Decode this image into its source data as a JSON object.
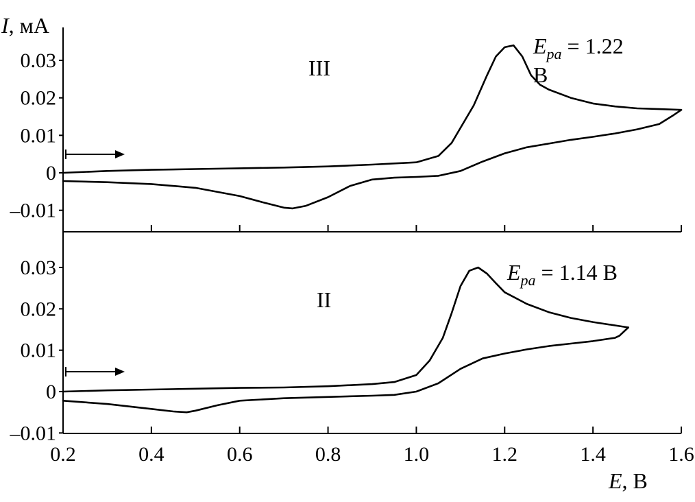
{
  "chart_data": {
    "type": "line",
    "ylabel_italic": "I",
    "ylabel_rest": ", мА",
    "xlabel_italic": "E",
    "xlabel_rest": ", В",
    "xlim": [
      0.2,
      1.6
    ],
    "xticks": [
      "0.2",
      "0.4",
      "0.6",
      "0.8",
      "1.0",
      "1.2",
      "1.4",
      "1.6"
    ],
    "panels": [
      {
        "id": "top",
        "label": "III",
        "annotation": {
          "italic": "E",
          "sub": "pa",
          "value": " = 1.22",
          "unit": "В"
        },
        "yticks": [
          "0.03",
          "0.02",
          "0.01",
          "0",
          "–0.01"
        ],
        "ylim": [
          -0.015,
          0.038
        ],
        "series": [
          {
            "part": "anodic",
            "x": [
              0.2,
              0.3,
              0.4,
              0.5,
              0.6,
              0.7,
              0.8,
              0.9,
              1.0,
              1.05,
              1.08,
              1.1,
              1.13,
              1.16,
              1.18,
              1.2,
              1.22,
              1.24,
              1.26,
              1.28,
              1.3,
              1.35,
              1.4,
              1.45,
              1.5,
              1.55,
              1.6
            ],
            "y": [
              0.0,
              0.0005,
              0.0008,
              0.001,
              0.0012,
              0.0014,
              0.0017,
              0.0022,
              0.0028,
              0.0045,
              0.008,
              0.012,
              0.018,
              0.026,
              0.031,
              0.0335,
              0.034,
              0.031,
              0.026,
              0.0235,
              0.0222,
              0.02,
              0.0185,
              0.0177,
              0.0172,
              0.017,
              0.0168
            ]
          },
          {
            "part": "cathodic",
            "x": [
              1.6,
              1.58,
              1.55,
              1.5,
              1.45,
              1.4,
              1.35,
              1.3,
              1.25,
              1.2,
              1.15,
              1.1,
              1.05,
              1.0,
              0.95,
              0.9,
              0.85,
              0.8,
              0.75,
              0.72,
              0.7,
              0.65,
              0.6,
              0.5,
              0.4,
              0.3,
              0.2
            ],
            "y": [
              0.0168,
              0.0152,
              0.013,
              0.0116,
              0.0105,
              0.0096,
              0.0088,
              0.0078,
              0.0068,
              0.0052,
              0.003,
              0.0005,
              -0.0008,
              -0.0011,
              -0.0013,
              -0.0018,
              -0.0035,
              -0.0065,
              -0.0088,
              -0.0095,
              -0.0093,
              -0.0078,
              -0.0062,
              -0.004,
              -0.003,
              -0.0025,
              -0.0022
            ]
          }
        ]
      },
      {
        "id": "bottom",
        "label": "II",
        "annotation": {
          "italic": "E",
          "sub": "pa",
          "value": " = 1.14 В",
          "unit": ""
        },
        "yticks": [
          "0.03",
          "0.02",
          "0.01",
          "0",
          "–0.01"
        ],
        "ylim": [
          -0.01,
          0.035
        ],
        "series": [
          {
            "part": "anodic",
            "x": [
              0.2,
              0.3,
              0.4,
              0.5,
              0.6,
              0.7,
              0.8,
              0.9,
              0.95,
              1.0,
              1.03,
              1.06,
              1.08,
              1.1,
              1.12,
              1.14,
              1.16,
              1.18,
              1.2,
              1.25,
              1.3,
              1.35,
              1.4,
              1.45,
              1.48
            ],
            "y": [
              0.0,
              0.0003,
              0.0005,
              0.0007,
              0.0009,
              0.001,
              0.0013,
              0.0018,
              0.0023,
              0.004,
              0.0075,
              0.013,
              0.019,
              0.0255,
              0.0292,
              0.03,
              0.0285,
              0.0262,
              0.024,
              0.0212,
              0.0192,
              0.0178,
              0.0168,
              0.016,
              0.0155
            ]
          },
          {
            "part": "cathodic",
            "x": [
              1.48,
              1.46,
              1.45,
              1.4,
              1.35,
              1.3,
              1.25,
              1.2,
              1.15,
              1.1,
              1.05,
              1.0,
              0.95,
              0.9,
              0.8,
              0.7,
              0.6,
              0.55,
              0.5,
              0.48,
              0.45,
              0.4,
              0.3,
              0.2
            ],
            "y": [
              0.0155,
              0.0135,
              0.013,
              0.0122,
              0.0116,
              0.011,
              0.0102,
              0.0092,
              0.008,
              0.0055,
              0.002,
              0.0,
              -0.0008,
              -0.001,
              -0.0013,
              -0.0016,
              -0.0022,
              -0.0033,
              -0.0046,
              -0.005,
              -0.0048,
              -0.0042,
              -0.003,
              -0.0022
            ]
          }
        ]
      }
    ]
  }
}
